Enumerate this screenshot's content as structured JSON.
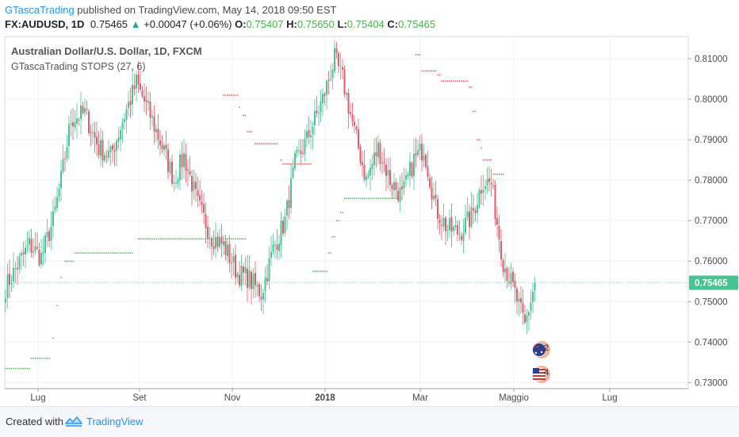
{
  "header": {
    "author": "GTascaTrading",
    "published": "published on TradingView.com, May 14, 2018 09:50 EST",
    "symbol": "FX:AUDUSD, 1D",
    "last": "0.75465",
    "arrow": "▲",
    "change": "+0.00047 (+0.06%)",
    "o_label": "O:",
    "o_value": "0.75407",
    "h_label": "H:",
    "h_value": "0.75650",
    "l_label": "L:",
    "l_value": "0.75404",
    "c_label": "C:",
    "c_value": "0.75465"
  },
  "legend": {
    "title": "Australian Dollar/U.S. Dollar, 1D, FXCM",
    "indicator": "GTascaTrading STOPS (27, 6)"
  },
  "footer": {
    "created": "Created with",
    "brand": "TradingView"
  },
  "colors": {
    "up": "#4ac392",
    "down": "#e45a6b",
    "stop_long": "#55b664",
    "stop_short": "#ef5350",
    "price_tag": "#4ac392",
    "grid": "#eef0f3"
  },
  "chart_data": {
    "type": "candlestick",
    "x_tick_labels": [
      "Lug",
      "Set",
      "Nov",
      "2018",
      "Mar",
      "Maggio",
      "Lug"
    ],
    "y_ticks": [
      0.73,
      0.74,
      0.75,
      0.76,
      0.77,
      0.78,
      0.79,
      0.8,
      0.81
    ],
    "y_tick_labels": [
      "0.73000",
      "0.74000",
      "0.75000",
      "0.76000",
      "0.77000",
      "0.78000",
      "0.79000",
      "0.80000",
      "0.81000"
    ],
    "ylim": [
      0.7285,
      0.8155
    ],
    "last_price_label": "0.75465",
    "event_markers": [
      {
        "flag": "australia",
        "count": "2"
      },
      {
        "flag": "usa",
        "count": "4"
      }
    ],
    "close_anchors": [
      [
        0,
        0.7535
      ],
      [
        5,
        0.758
      ],
      [
        12,
        0.764
      ],
      [
        18,
        0.761
      ],
      [
        24,
        0.77
      ],
      [
        28,
        0.78
      ],
      [
        33,
        0.795
      ],
      [
        40,
        0.7965
      ],
      [
        47,
        0.788
      ],
      [
        53,
        0.786
      ],
      [
        60,
        0.796
      ],
      [
        66,
        0.804
      ],
      [
        73,
        0.796
      ],
      [
        80,
        0.787
      ],
      [
        85,
        0.78
      ],
      [
        90,
        0.786
      ],
      [
        97,
        0.774
      ],
      [
        104,
        0.766
      ],
      [
        110,
        0.764
      ],
      [
        117,
        0.757
      ],
      [
        122,
        0.756
      ],
      [
        129,
        0.752
      ],
      [
        135,
        0.763
      ],
      [
        141,
        0.77
      ],
      [
        146,
        0.784
      ],
      [
        152,
        0.79
      ],
      [
        160,
        0.8
      ],
      [
        166,
        0.81
      ],
      [
        170,
        0.805
      ],
      [
        176,
        0.792
      ],
      [
        182,
        0.78
      ],
      [
        188,
        0.788
      ],
      [
        194,
        0.78
      ],
      [
        200,
        0.776
      ],
      [
        206,
        0.785
      ],
      [
        211,
        0.788
      ],
      [
        217,
        0.773
      ],
      [
        223,
        0.768
      ],
      [
        229,
        0.767
      ],
      [
        235,
        0.771
      ],
      [
        241,
        0.78
      ],
      [
        245,
        0.779
      ],
      [
        251,
        0.76
      ],
      [
        257,
        0.752
      ],
      [
        262,
        0.744
      ],
      [
        267,
        0.7546
      ]
    ],
    "stop_segments": [
      {
        "side": "long",
        "start": 0,
        "end": 12,
        "level": 0.7335
      },
      {
        "side": "long",
        "start": 13,
        "end": 22,
        "level": 0.736
      },
      {
        "side": "long",
        "start": 24,
        "end": 24,
        "level": 0.741
      },
      {
        "side": "long",
        "start": 26,
        "end": 26,
        "level": 0.749
      },
      {
        "side": "long",
        "start": 28,
        "end": 28,
        "level": 0.756
      },
      {
        "side": "long",
        "start": 30,
        "end": 34,
        "level": 0.76
      },
      {
        "side": "long",
        "start": 35,
        "end": 64,
        "level": 0.762
      },
      {
        "side": "long",
        "start": 67,
        "end": 121,
        "level": 0.7655
      },
      {
        "side": "short",
        "start": 110,
        "end": 117,
        "level": 0.801
      },
      {
        "side": "short",
        "start": 118,
        "end": 118,
        "level": 0.798
      },
      {
        "side": "short",
        "start": 120,
        "end": 121,
        "level": 0.796
      },
      {
        "side": "short",
        "start": 122,
        "end": 124,
        "level": 0.792
      },
      {
        "side": "short",
        "start": 126,
        "end": 137,
        "level": 0.789
      },
      {
        "side": "short",
        "start": 139,
        "end": 139,
        "level": 0.785
      },
      {
        "side": "short",
        "start": 140,
        "end": 154,
        "level": 0.784
      },
      {
        "side": "long",
        "start": 155,
        "end": 162,
        "level": 0.7575
      },
      {
        "side": "long",
        "start": 163,
        "end": 164,
        "level": 0.762
      },
      {
        "side": "long",
        "start": 165,
        "end": 166,
        "level": 0.766
      },
      {
        "side": "long",
        "start": 167,
        "end": 168,
        "level": 0.77
      },
      {
        "side": "long",
        "start": 169,
        "end": 170,
        "level": 0.772
      },
      {
        "side": "long",
        "start": 171,
        "end": 200,
        "level": 0.7755
      },
      {
        "side": "short",
        "start": 207,
        "end": 209,
        "level": 0.811
      },
      {
        "side": "short",
        "start": 210,
        "end": 217,
        "level": 0.807
      },
      {
        "side": "short",
        "start": 218,
        "end": 219,
        "level": 0.806
      },
      {
        "side": "short",
        "start": 220,
        "end": 233,
        "level": 0.8045
      },
      {
        "side": "short",
        "start": 234,
        "end": 235,
        "level": 0.803
      },
      {
        "side": "short",
        "start": 236,
        "end": 237,
        "level": 0.797
      },
      {
        "side": "short",
        "start": 238,
        "end": 239,
        "level": 0.79
      },
      {
        "side": "short",
        "start": 240,
        "end": 240,
        "level": 0.788
      },
      {
        "side": "short",
        "start": 241,
        "end": 245,
        "level": 0.785
      },
      {
        "side": "short",
        "start": 246,
        "end": 251,
        "level": 0.7815
      }
    ]
  }
}
